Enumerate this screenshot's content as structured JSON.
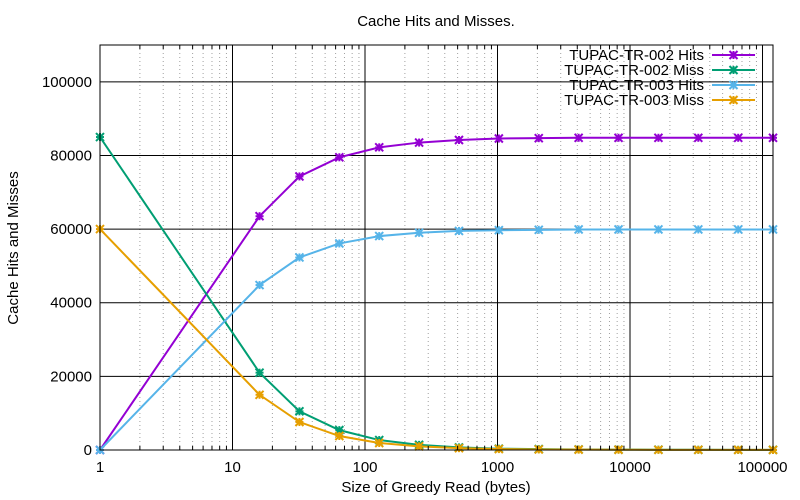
{
  "chart_data": {
    "type": "line",
    "title": "Cache Hits and Misses.",
    "xlabel": "Size of Greedy Read (bytes)",
    "ylabel": "Cache Hits and Misses",
    "xscale": "log",
    "xlim": [
      1,
      120000
    ],
    "ylim": [
      0,
      110000
    ],
    "grid": true,
    "legend_position": "top-right",
    "x_ticks": [
      {
        "value": 1,
        "label": "1"
      },
      {
        "value": 10,
        "label": "10"
      },
      {
        "value": 100,
        "label": "100"
      },
      {
        "value": 1000,
        "label": "1000"
      },
      {
        "value": 10000,
        "label": "10000"
      },
      {
        "value": 100000,
        "label": "100000"
      }
    ],
    "y_ticks": [
      {
        "value": 0,
        "label": "0"
      },
      {
        "value": 20000,
        "label": "20000"
      },
      {
        "value": 40000,
        "label": "40000"
      },
      {
        "value": 60000,
        "label": "60000"
      },
      {
        "value": 80000,
        "label": "80000"
      },
      {
        "value": 100000,
        "label": "100000"
      }
    ],
    "x": [
      1,
      16,
      32,
      64,
      128,
      256,
      512,
      1024,
      2048,
      4096,
      8192,
      16384,
      32768,
      65536,
      131072
    ],
    "series": [
      {
        "name": "TUPAC-TR-002 Hits",
        "color": "#9400d3",
        "values": [
          0,
          63500,
          74300,
          79500,
          82200,
          83500,
          84200,
          84600,
          84700,
          84800,
          84800,
          84800,
          84800,
          84800,
          84800
        ]
      },
      {
        "name": "TUPAC-TR-002 Miss",
        "color": "#009e73",
        "values": [
          85000,
          21000,
          10500,
          5400,
          2700,
          1400,
          700,
          350,
          250,
          150,
          100,
          80,
          60,
          40,
          30
        ]
      },
      {
        "name": "TUPAC-TR-003 Hits",
        "color": "#56b4e9",
        "values": [
          0,
          44800,
          52300,
          56100,
          58100,
          59000,
          59500,
          59700,
          59800,
          59900,
          59900,
          59900,
          59900,
          59900,
          59900
        ]
      },
      {
        "name": "TUPAC-TR-003 Miss",
        "color": "#e69f00",
        "values": [
          60000,
          15000,
          7600,
          3800,
          1900,
          1000,
          500,
          250,
          150,
          100,
          70,
          50,
          40,
          30,
          20
        ]
      }
    ]
  }
}
